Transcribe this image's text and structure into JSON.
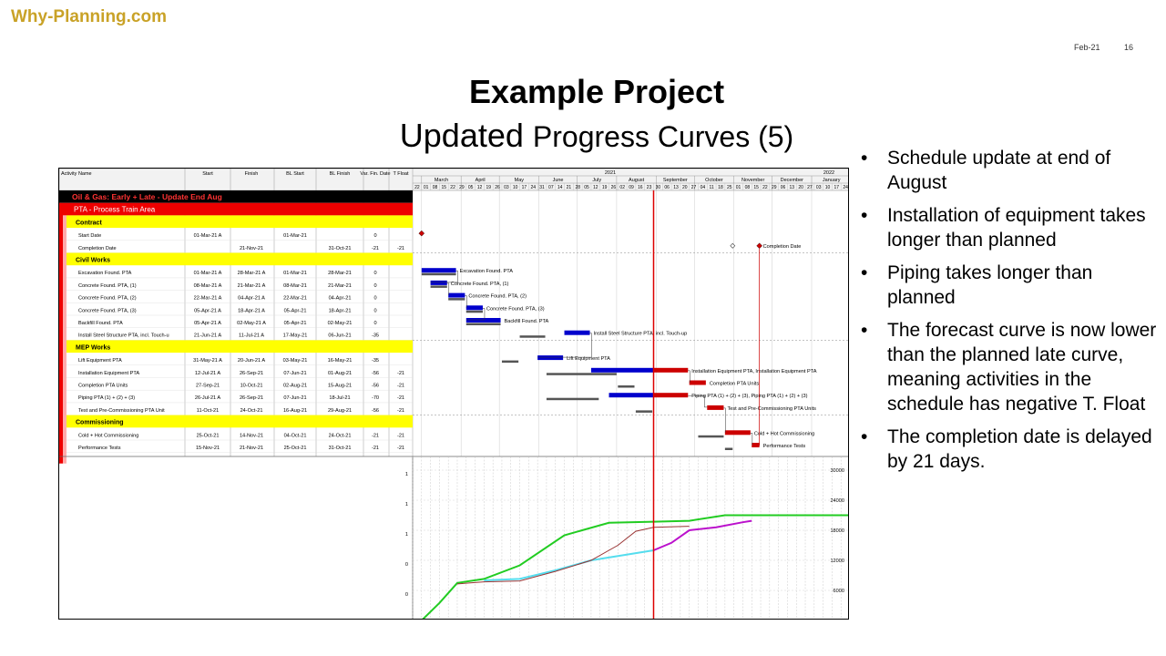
{
  "brand": "Why-Planning.com",
  "meta": {
    "date": "Feb-21",
    "page": "16"
  },
  "title": {
    "line1": "Example Project",
    "line2a": "Updated",
    "line2b": "Progress Curves (5)"
  },
  "bullets": [
    "Schedule update at end of August",
    "Installation of equipment takes longer than planned",
    "Piping takes longer than planned",
    "The forecast curve is now lower than the planned late curve, meaning activities in the schedule has negative T. Float",
    "The completion date is delayed by 21 days."
  ],
  "columns": [
    "Activity Name",
    "Start",
    "Finish",
    "BL Start",
    "BL Finish",
    "Var. Fin. Date",
    "T Float"
  ],
  "years": [
    "2021",
    "2022"
  ],
  "months": [
    "March",
    "April",
    "May",
    "June",
    "July",
    "August",
    "September",
    "October",
    "November",
    "December",
    "January"
  ],
  "weeks": [
    "22",
    "01",
    "08",
    "15",
    "22",
    "29",
    "05",
    "12",
    "19",
    "26",
    "03",
    "10",
    "17",
    "24",
    "31",
    "07",
    "14",
    "21",
    "28",
    "05",
    "12",
    "19",
    "26",
    "02",
    "09",
    "16",
    "23",
    "30",
    "06",
    "13",
    "20",
    "27",
    "04",
    "11",
    "18",
    "25",
    "01",
    "08",
    "15",
    "22",
    "29",
    "06",
    "13",
    "20",
    "27",
    "03",
    "10",
    "17",
    "24"
  ],
  "rows": [
    {
      "type": "project",
      "name": "Oil & Gas: Early + Late - Update End Aug"
    },
    {
      "type": "wbs",
      "name": "PTA - Process Train Area"
    },
    {
      "type": "group",
      "name": "Contract"
    },
    {
      "type": "act",
      "name": "Start Date",
      "start": "01-Mar-21 A",
      "finish": "",
      "bls": "01-Mar-21",
      "blf": "",
      "var": "0",
      "tf": ""
    },
    {
      "type": "act",
      "name": "Completion Date",
      "start": "",
      "finish": "21-Nov-21",
      "bls": "",
      "blf": "31-Oct-21",
      "var": "-21",
      "tf": "-21"
    },
    {
      "type": "group",
      "name": "Civil Works"
    },
    {
      "type": "act",
      "name": "Excavation Found. PTA",
      "start": "01-Mar-21 A",
      "finish": "28-Mar-21 A",
      "bls": "01-Mar-21",
      "blf": "28-Mar-21",
      "var": "0",
      "tf": ""
    },
    {
      "type": "act",
      "name": "Concrete Found. PTA, (1)",
      "start": "08-Mar-21 A",
      "finish": "21-Mar-21 A",
      "bls": "08-Mar-21",
      "blf": "21-Mar-21",
      "var": "0",
      "tf": ""
    },
    {
      "type": "act",
      "name": "Concrete Found. PTA, (2)",
      "start": "22-Mar-21 A",
      "finish": "04-Apr-21 A",
      "bls": "22-Mar-21",
      "blf": "04-Apr-21",
      "var": "0",
      "tf": ""
    },
    {
      "type": "act",
      "name": "Concrete Found. PTA, (3)",
      "start": "05-Apr-21 A",
      "finish": "18-Apr-21 A",
      "bls": "05-Apr-21",
      "blf": "18-Apr-21",
      "var": "0",
      "tf": ""
    },
    {
      "type": "act",
      "name": "Backfill Found. PTA",
      "start": "05-Apr-21 A",
      "finish": "02-May-21 A",
      "bls": "05-Apr-21",
      "blf": "02-May-21",
      "var": "0",
      "tf": ""
    },
    {
      "type": "act",
      "name": "Install Steel Structure PTA, incl. Touch-u",
      "start": "21-Jun-21 A",
      "finish": "11-Jul-21 A",
      "bls": "17-May-21",
      "blf": "06-Jun-21",
      "var": "-35",
      "tf": ""
    },
    {
      "type": "group",
      "name": "MEP Works"
    },
    {
      "type": "act",
      "name": "Lift Equipment PTA",
      "start": "31-May-21 A",
      "finish": "20-Jun-21 A",
      "bls": "03-May-21",
      "blf": "16-May-21",
      "var": "-35",
      "tf": ""
    },
    {
      "type": "act",
      "name": "Installation Equipment PTA",
      "start": "12-Jul-21 A",
      "finish": "26-Sep-21",
      "bls": "07-Jun-21",
      "blf": "01-Aug-21",
      "var": "-56",
      "tf": "-21"
    },
    {
      "type": "act",
      "name": "Completion PTA Units",
      "start": "27-Sep-21",
      "finish": "10-Oct-21",
      "bls": "02-Aug-21",
      "blf": "15-Aug-21",
      "var": "-56",
      "tf": "-21"
    },
    {
      "type": "act",
      "name": "Piping PTA (1) + (2) + (3)",
      "start": "26-Jul-21 A",
      "finish": "26-Sep-21",
      "bls": "07-Jun-21",
      "blf": "18-Jul-21",
      "var": "-70",
      "tf": "-21"
    },
    {
      "type": "act",
      "name": "Test and Pre-Commissioning PTA Unit",
      "start": "11-Oct-21",
      "finish": "24-Oct-21",
      "bls": "16-Aug-21",
      "blf": "29-Aug-21",
      "var": "-56",
      "tf": "-21"
    },
    {
      "type": "group",
      "name": "Commissioning"
    },
    {
      "type": "act",
      "name": "Cold + Hot Commissioning",
      "start": "25-Oct-21",
      "finish": "14-Nov-21",
      "bls": "04-Oct-21",
      "blf": "24-Oct-21",
      "var": "-21",
      "tf": "-21"
    },
    {
      "type": "act",
      "name": "Performance Tests",
      "start": "15-Nov-21",
      "finish": "21-Nov-21",
      "bls": "25-Oct-21",
      "blf": "31-Oct-21",
      "var": "-21",
      "tf": "-21"
    }
  ],
  "bar_labels": [
    "Completion Date",
    "Excavation Found. PTA",
    "Concrete Found. PTA, (1)",
    "Concrete Found. PTA, (2)",
    "Concrete Found. PTA, (3)",
    "Backfill Found. PTA",
    "Install Steel Structure PTA, incl. Touch-up",
    "Lift Equipment PTA",
    "Installation Equipment PTA, Installation Equipment PTA",
    "Completion PTA Units",
    "Piping PTA (1) + (2) + (3), Piping PTA (1) + (2) + (3)",
    "Test and Pre-Commissioning PTA Units",
    "Cold + Hot Commissioning",
    "Performance Tests"
  ],
  "chart_data": {
    "type": "line",
    "x_unit": "weekly periods from 22-Feb-21",
    "y_right_ticks": [
      "30000",
      "24000",
      "18000",
      "12000",
      "6000"
    ],
    "y_left_ticks": [
      "1",
      "1",
      "1",
      "0",
      "0"
    ],
    "ylim": [
      0,
      32000
    ],
    "data_date": "30-Aug-21",
    "series": [
      {
        "color": "#22cc22",
        "x": [
          "22-Feb-21",
          "01-Mar-21",
          "15-Mar-21",
          "29-Mar-21",
          "19-Apr-21",
          "17-May-21",
          "21-Jun-21",
          "05-Jul-21",
          "26-Jul-21",
          "30-Aug-21",
          "27-Sep-21",
          "25-Oct-21",
          "31-Oct-21",
          "21-Feb-22"
        ],
        "y": [
          0,
          0,
          3500,
          7500,
          8300,
          11000,
          17000,
          18000,
          19500,
          19700,
          19900,
          21000,
          21000,
          21000
        ]
      },
      {
        "color": "#55ddee",
        "x": [
          "19-Apr-21",
          "17-May-21",
          "14-Jun-21",
          "12-Jul-21",
          "30-Aug-21"
        ],
        "y": [
          8000,
          8300,
          10000,
          12000,
          14000
        ]
      },
      {
        "color": "#993333",
        "x": [
          "29-Mar-21",
          "19-Apr-21",
          "17-May-21",
          "14-Jun-21",
          "12-Jul-21",
          "02-Aug-21",
          "16-Aug-21",
          "30-Aug-21",
          "27-Sep-21"
        ],
        "y": [
          7300,
          7700,
          7900,
          9800,
          12000,
          15000,
          17800,
          18600,
          18800
        ]
      },
      {
        "color": "#bb11cc",
        "x": [
          "30-Aug-21",
          "13-Sep-21",
          "27-Sep-21",
          "18-Oct-21",
          "08-Nov-21",
          "15-Nov-21"
        ],
        "y": [
          14000,
          15500,
          18000,
          18600,
          19600,
          19900
        ]
      }
    ]
  }
}
